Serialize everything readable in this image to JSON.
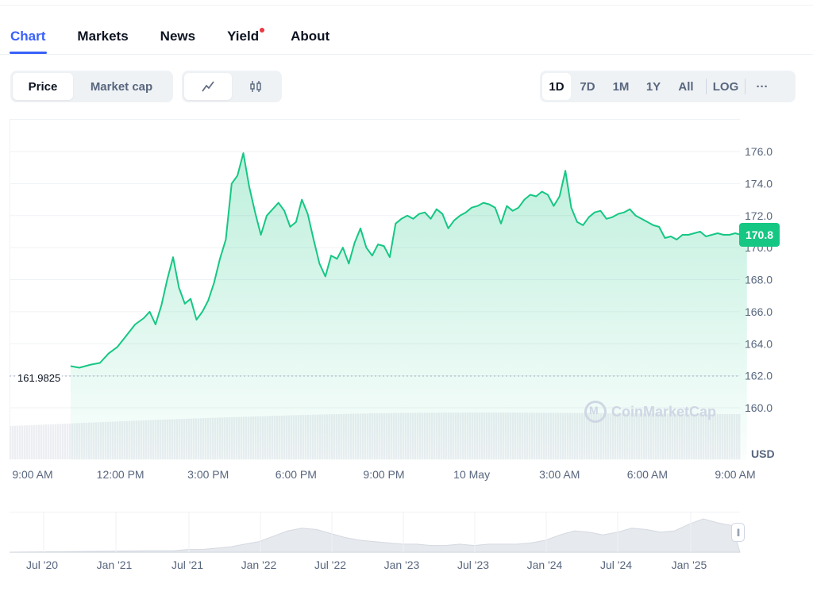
{
  "tabs": [
    {
      "label": "Chart",
      "active": true
    },
    {
      "label": "Markets",
      "active": false
    },
    {
      "label": "News",
      "active": false
    },
    {
      "label": "Yield",
      "active": false,
      "has_dot": true
    },
    {
      "label": "About",
      "active": false
    }
  ],
  "price_toggle": {
    "price": "Price",
    "market_cap": "Market cap",
    "selected": "Price"
  },
  "chart_type_toggle": {
    "selected": "line",
    "options": [
      "line-chart-icon",
      "candlestick-icon"
    ]
  },
  "ranges": [
    "1D",
    "7D",
    "1M",
    "1Y",
    "All"
  ],
  "range_selected": "1D",
  "log_label": "LOG",
  "more_label": "···",
  "badge_price": "170.8",
  "open_price_label": "161.9825",
  "currency_label": "USD",
  "watermark": "CoinMarketCap",
  "colors": {
    "accent": "#3861fb",
    "up": "#16c784",
    "grid": "#eff2f5",
    "text_muted": "#58667e",
    "volume": "#e6e9ee"
  },
  "chart_data": [
    {
      "type": "area",
      "ylim": [
        159,
        177.5
      ],
      "yticks": [
        "176.0",
        "174.0",
        "172.0",
        "170.0",
        "168.0",
        "166.0",
        "164.0",
        "162.0",
        "160.0"
      ],
      "ytick_values": [
        176,
        174,
        172,
        170,
        168,
        166,
        164,
        162,
        160
      ],
      "xtick_labels": [
        "9:00 AM",
        "12:00 PM",
        "3:00 PM",
        "6:00 PM",
        "9:00 PM",
        "10 May",
        "3:00 AM",
        "6:00 AM",
        "9:00 AM"
      ],
      "xtick_hours": [
        0,
        3,
        6,
        9,
        12,
        15,
        18,
        21,
        24
      ],
      "baseline": 161.9825,
      "last_price": 170.8,
      "series": [
        {
          "x_hours": [
            1.3,
            1.6,
            2.0,
            2.3,
            2.6,
            2.9,
            3.2,
            3.5,
            3.8,
            4.0,
            4.2,
            4.4,
            4.6,
            4.8,
            5.0,
            5.2,
            5.4,
            5.6,
            5.8,
            6.0,
            6.2,
            6.4,
            6.6,
            6.8,
            7.0,
            7.2,
            7.4,
            7.6,
            7.8,
            8.0,
            8.2,
            8.4,
            8.6,
            8.8,
            9.0,
            9.2,
            9.4,
            9.6,
            9.8,
            10.0,
            10.2,
            10.4,
            10.6,
            10.8,
            11.0,
            11.2,
            11.4,
            11.6,
            11.8,
            12.0,
            12.2,
            12.4,
            12.6,
            12.8,
            13.0,
            13.2,
            13.4,
            13.6,
            13.8,
            14.0,
            14.2,
            14.4,
            14.6,
            14.8,
            15.0,
            15.2,
            15.4,
            15.6,
            15.8,
            16.0,
            16.2,
            16.4,
            16.6,
            16.8,
            17.0,
            17.2,
            17.4,
            17.6,
            17.8,
            18.0,
            18.2,
            18.4,
            18.6,
            18.8,
            19.0,
            19.2,
            19.4,
            19.6,
            19.8,
            20.0,
            20.2,
            20.4,
            20.6,
            20.8,
            21.0,
            21.2,
            21.4,
            21.6,
            21.8,
            22.0,
            22.2,
            22.4,
            22.6,
            22.8,
            23.0,
            23.2,
            23.4,
            23.6,
            23.8,
            24.0,
            24.2,
            24.4
          ],
          "values": [
            162.6,
            162.5,
            162.7,
            162.8,
            163.4,
            163.8,
            164.5,
            165.2,
            165.6,
            166.0,
            165.2,
            166.4,
            168.0,
            169.4,
            167.5,
            166.5,
            166.8,
            165.5,
            166.0,
            166.7,
            167.8,
            169.3,
            170.5,
            174.0,
            174.5,
            175.9,
            173.8,
            172.2,
            170.8,
            172.0,
            172.4,
            172.8,
            172.3,
            171.3,
            171.6,
            173.0,
            172.1,
            170.5,
            169.0,
            168.2,
            169.5,
            169.3,
            170.0,
            169.0,
            170.3,
            171.2,
            170.0,
            169.5,
            170.2,
            170.1,
            169.4,
            171.5,
            171.8,
            172.0,
            171.8,
            172.1,
            172.2,
            171.8,
            172.4,
            172.1,
            171.2,
            171.7,
            172.0,
            172.2,
            172.5,
            172.6,
            172.8,
            172.7,
            172.5,
            171.5,
            172.6,
            172.3,
            172.5,
            173.0,
            173.3,
            173.2,
            173.5,
            173.3,
            172.6,
            173.2,
            174.8,
            172.5,
            171.6,
            171.4,
            171.9,
            172.2,
            172.3,
            171.8,
            171.9,
            172.1,
            172.2,
            172.4,
            172.0,
            171.8,
            171.6,
            171.4,
            171.3,
            170.6,
            170.7,
            170.5,
            170.8,
            170.8,
            170.9,
            171.0,
            170.7,
            170.8,
            170.9,
            170.8,
            170.8,
            170.9,
            170.8,
            170.8
          ],
          "color": "#16c784"
        }
      ]
    },
    {
      "type": "area",
      "xtick_labels": [
        "Jul '20",
        "Jan '21",
        "Jul '21",
        "Jan '22",
        "Jul '22",
        "Jan '23",
        "Jul '23",
        "Jan '24",
        "Jul '24",
        "Jan '25"
      ],
      "series": [
        {
          "values": [
            1,
            1,
            1,
            2,
            2,
            3,
            4,
            6,
            8,
            12,
            16,
            18,
            17,
            14,
            11,
            9,
            8,
            7,
            6,
            6,
            5,
            5,
            6,
            5,
            6,
            6,
            6,
            7,
            9,
            13,
            16,
            15,
            13,
            15,
            18,
            17,
            15,
            16,
            21,
            25,
            22,
            20
          ]
        }
      ]
    }
  ]
}
